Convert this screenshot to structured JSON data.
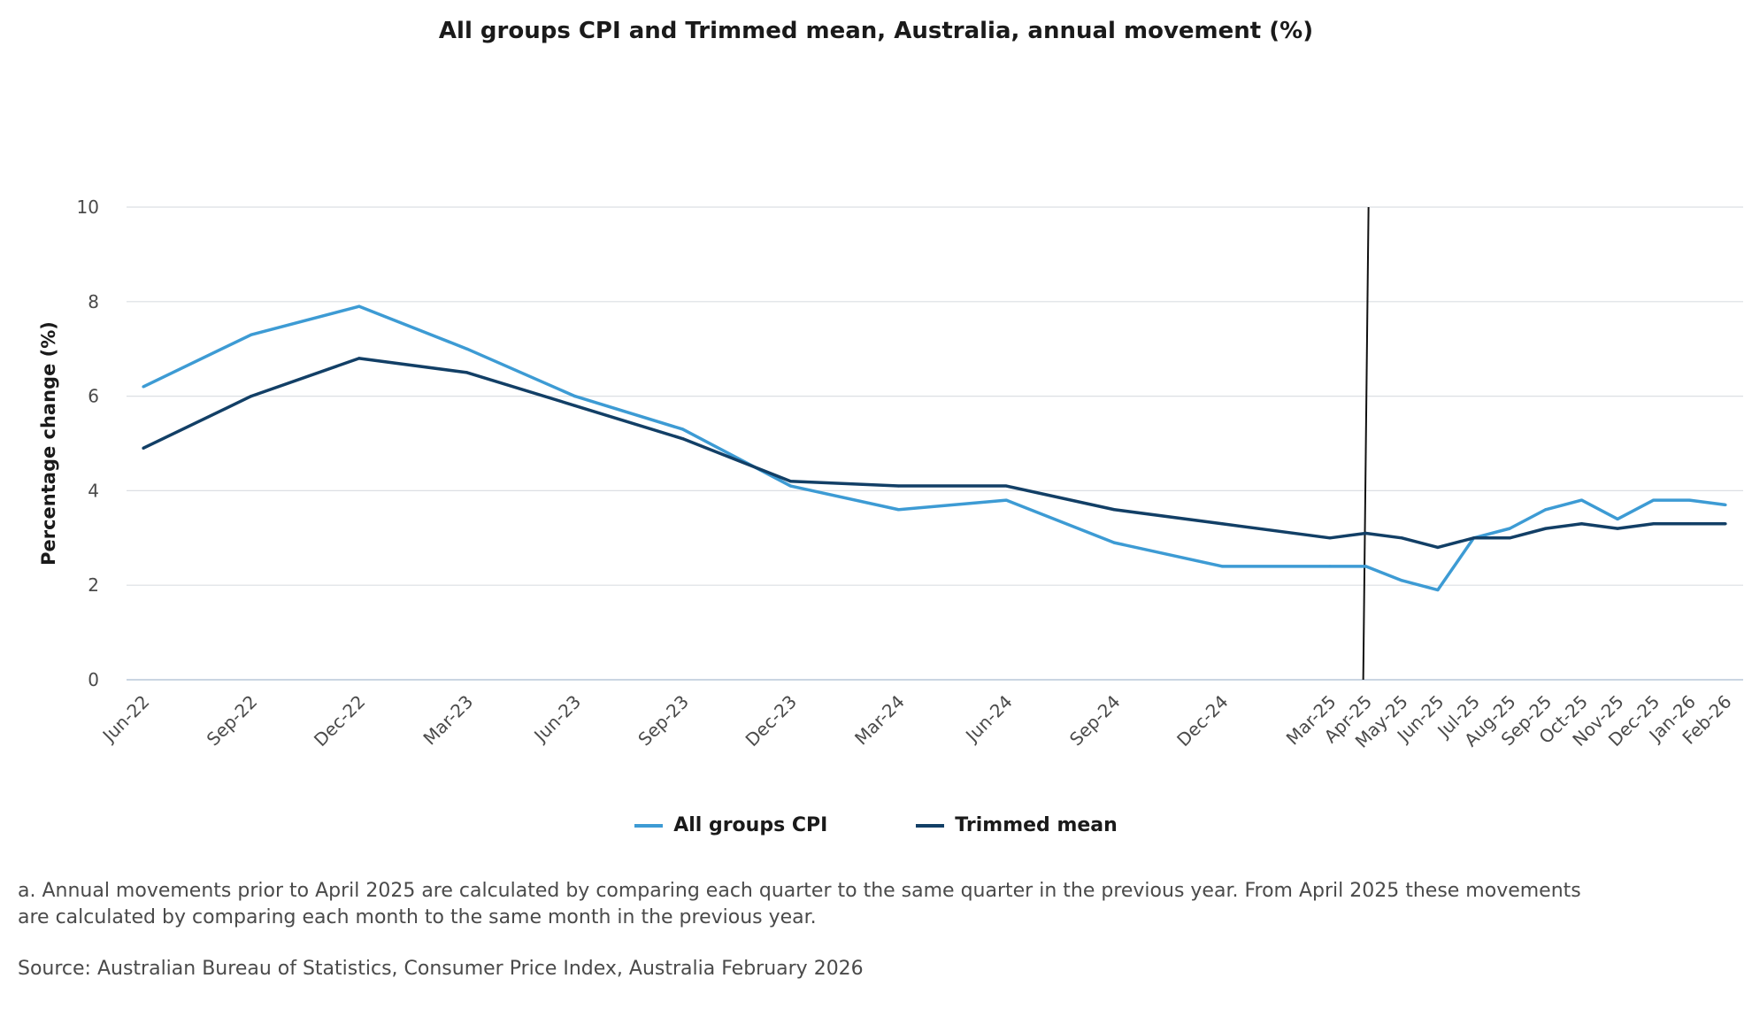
{
  "chart_data": {
    "type": "line",
    "title": "All groups CPI and Trimmed mean, Australia, annual movement (%)",
    "ylabel": "Percentage change (%)",
    "xlabel": "",
    "ylim": [
      0,
      10
    ],
    "yticks": [
      0,
      2,
      4,
      6,
      8,
      10
    ],
    "grid": true,
    "legend_position": "bottom-center",
    "categories": [
      "Jun-22",
      "Sep-22",
      "Dec-22",
      "Mar-23",
      "Jun-23",
      "Sep-23",
      "Dec-23",
      "Mar-24",
      "Jun-24",
      "Sep-24",
      "Dec-24",
      "Mar-25",
      "Apr-25",
      "May-25",
      "Jun-25",
      "Jul-25",
      "Aug-25",
      "Sep-25",
      "Oct-25",
      "Nov-25",
      "Dec-25",
      "Jan-26",
      "Feb-26"
    ],
    "x_positions": [
      0,
      3,
      6,
      9,
      12,
      15,
      18,
      21,
      24,
      27,
      30,
      33,
      34,
      35,
      36,
      37,
      38,
      39,
      40,
      41,
      42,
      43,
      44
    ],
    "vertical_marker_position": 34,
    "series": [
      {
        "name": "All groups CPI",
        "color": "#3d9bd4",
        "values": [
          6.2,
          7.3,
          7.9,
          7.0,
          6.0,
          5.3,
          4.1,
          3.6,
          3.8,
          2.9,
          2.4,
          2.4,
          2.4,
          2.1,
          1.9,
          3.0,
          3.2,
          3.6,
          3.8,
          3.4,
          3.8,
          3.8,
          3.7
        ]
      },
      {
        "name": "Trimmed mean",
        "color": "#123f66",
        "values": [
          4.9,
          6.0,
          6.8,
          6.5,
          5.8,
          5.1,
          4.2,
          4.1,
          4.1,
          3.6,
          3.3,
          3.0,
          3.1,
          3.0,
          2.8,
          3.0,
          3.0,
          3.2,
          3.3,
          3.2,
          3.3,
          3.3,
          3.3
        ]
      }
    ]
  },
  "footnote": "a. Annual movements prior to April 2025 are calculated by comparing each quarter to the same quarter in the previous year.  From April 2025 these movements are calculated by comparing each month to the same month in the previous year.",
  "source": "Source: Australian Bureau of Statistics, Consumer Price Index, Australia February 2026"
}
